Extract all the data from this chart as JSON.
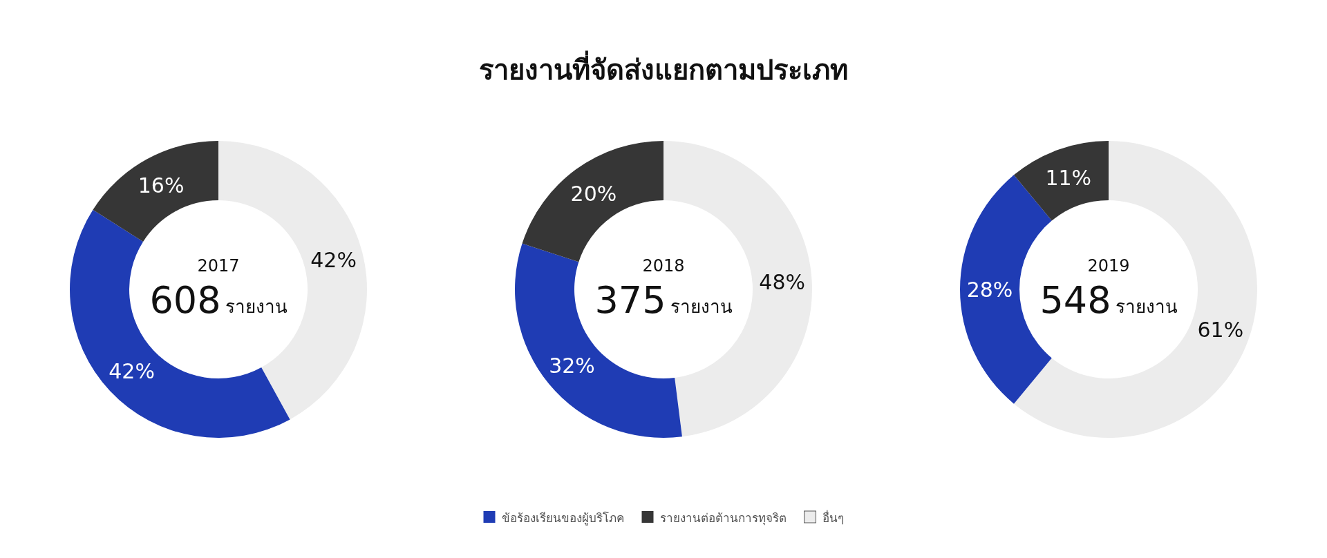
{
  "chart_data": [
    {
      "type": "donut",
      "subtitle": "2017",
      "annotations": [
        "608",
        "รายงาน"
      ],
      "legend": "bottom",
      "categories": [
        "อื่นๆ",
        "ข้อร้องเรียนของผู้บริโภค",
        "รายงานต่อต้านการทุจริต"
      ],
      "values": [
        42,
        42,
        16
      ],
      "value_labels": [
        "42%",
        "42%",
        "16%"
      ],
      "colors": [
        "#ececec",
        "#1f3cb4",
        "#363636"
      ]
    },
    {
      "type": "donut",
      "title": "รายงานที่จัดส่งแยกตามประเภท",
      "subtitle": "2018",
      "annotations": [
        "375",
        "รายงาน"
      ],
      "categories": [
        null,
        null,
        null
      ],
      "values": [
        48,
        32,
        20
      ],
      "value_labels": [
        "48%",
        "32%",
        "20%"
      ],
      "colors": [
        "#ececec",
        "#1f3cb4",
        "#363636"
      ]
    },
    {
      "type": "donut",
      "subtitle": "2019",
      "annotations": [
        "548",
        "รายงาน"
      ],
      "categories": [
        null,
        null,
        null
      ],
      "values": [
        61,
        28,
        11
      ],
      "value_labels": [
        "61%",
        "28%",
        "11%"
      ],
      "colors": [
        "#ececec",
        "#1f3cb4",
        "#363636"
      ]
    }
  ]
}
